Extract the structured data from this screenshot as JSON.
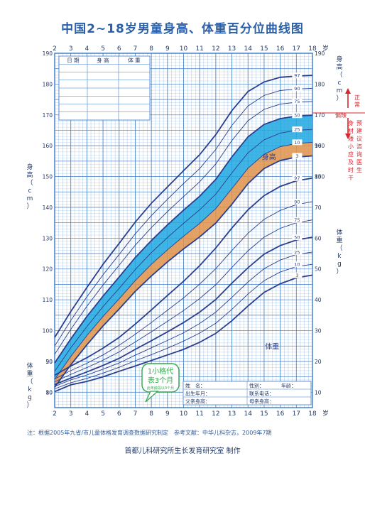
{
  "title": "中国2~18岁男童身高、体重百分位曲线图",
  "footnote": "注：根据2005年九省/市儿童体格发育调查数据研究制定　参考文献：中华儿科杂志，2009年7期",
  "credit": "首都儿科研究所生长发育研究室 制作",
  "age_axis_unit": "岁",
  "height_axis_label": "身高（cm）",
  "weight_axis_label": "体重（kg）",
  "height_curve_label": "身高",
  "weight_curve_label": "体重",
  "record_table": {
    "headers": [
      "日 期",
      "身 高",
      "体 重"
    ]
  },
  "info_box": {
    "name": "姓　名：",
    "sex": "性别：",
    "age": "年龄：",
    "birth": "出生年月：",
    "phone": "联系电话：",
    "father": "父亲身高：",
    "mother": "母亲身高："
  },
  "callout": {
    "main": "1小格代表3个月",
    "line1": "1小格代",
    "line2": "表3个月",
    "small": "此年龄段以3个月"
  },
  "side_notes": {
    "normal": "正常",
    "short": "偏矮",
    "advice": "身材矮小应及时干预建议咨询医生"
  },
  "colors": {
    "grid": "#3a7bc8",
    "curve": "#2a3f8f",
    "band_blue": "#1fa8e0",
    "band_orange": "#e0924a",
    "red": "#d8262c",
    "green": "#2fa84a"
  },
  "chart_data": [
    {
      "type": "line",
      "name": "身高",
      "x": [
        2,
        3,
        4,
        5,
        6,
        7,
        8,
        9,
        10,
        11,
        12,
        13,
        14,
        15,
        16,
        17,
        18
      ],
      "xlabel": "岁",
      "ylabel": "身高（cm）",
      "xlim": [
        2,
        18
      ],
      "ylim": [
        75,
        190
      ],
      "percentiles": [
        "3",
        "10",
        "25",
        "50",
        "75",
        "90",
        "97"
      ],
      "series": [
        {
          "name": "3",
          "values": [
            81.6,
            88.9,
            95.4,
            101.5,
            107.0,
            112.7,
            117.7,
            122.3,
            126.5,
            130.4,
            134.9,
            141.0,
            147.7,
            152.6,
            155.2,
            156.3,
            156.7
          ]
        },
        {
          "name": "10",
          "values": [
            84.2,
            91.6,
            98.4,
            104.6,
            110.3,
            116.2,
            121.5,
            126.2,
            130.6,
            134.8,
            139.6,
            146.1,
            152.7,
            157.2,
            159.7,
            160.7,
            161.1
          ]
        },
        {
          "name": "25",
          "values": [
            86.8,
            94.4,
            101.3,
            107.8,
            113.7,
            119.8,
            125.3,
            130.2,
            134.8,
            139.2,
            144.3,
            151.2,
            157.7,
            161.9,
            164.1,
            165.0,
            165.3
          ]
        },
        {
          "name": "50",
          "values": [
            89.5,
            97.3,
            104.6,
            111.2,
            117.4,
            123.7,
            129.2,
            134.3,
            139.1,
            143.6,
            149.1,
            156.4,
            162.9,
            166.9,
            168.8,
            169.6,
            169.9
          ]
        },
        {
          "name": "75",
          "values": [
            92.3,
            100.4,
            107.9,
            114.8,
            121.2,
            127.7,
            133.4,
            138.6,
            143.5,
            148.3,
            154.1,
            161.7,
            168.1,
            171.8,
            173.5,
            174.1,
            174.4
          ]
        },
        {
          "name": "90",
          "values": [
            95.0,
            103.3,
            111.0,
            118.1,
            124.7,
            131.4,
            137.3,
            142.6,
            147.7,
            152.6,
            158.8,
            166.6,
            172.9,
            176.3,
            177.9,
            178.4,
            178.6
          ]
        },
        {
          "name": "97",
          "values": [
            97.8,
            106.2,
            114.0,
            121.5,
            128.3,
            135.2,
            141.3,
            146.6,
            151.9,
            157.1,
            163.6,
            171.4,
            177.6,
            180.7,
            182.2,
            182.6,
            182.8
          ]
        }
      ]
    },
    {
      "type": "line",
      "name": "体重",
      "x": [
        2,
        3,
        4,
        5,
        6,
        7,
        8,
        9,
        10,
        11,
        12,
        13,
        14,
        15,
        16,
        17,
        18
      ],
      "xlabel": "岁",
      "ylabel": "体重（kg）",
      "xlim": [
        2,
        18
      ],
      "ylim": [
        5,
        100
      ],
      "percentiles": [
        "3",
        "10",
        "25",
        "50",
        "75",
        "90",
        "97"
      ],
      "series": [
        {
          "name": "3",
          "values": [
            10.2,
            12.4,
            13.5,
            15.0,
            16.8,
            18.5,
            20.3,
            22.1,
            23.9,
            26.2,
            29.1,
            33.2,
            38.0,
            42.4,
            45.2,
            47.1,
            48.0
          ]
        },
        {
          "name": "10",
          "values": [
            11.1,
            13.1,
            14.5,
            16.2,
            18.1,
            20.2,
            22.2,
            24.3,
            26.6,
            29.2,
            32.4,
            36.9,
            41.9,
            46.2,
            49.0,
            50.8,
            51.5
          ]
        },
        {
          "name": "25",
          "values": [
            11.9,
            14.0,
            15.6,
            17.5,
            19.5,
            22.0,
            24.4,
            26.8,
            29.3,
            32.3,
            36.0,
            40.8,
            45.8,
            50.1,
            52.9,
            54.7,
            55.5
          ]
        },
        {
          "name": "50",
          "values": [
            12.5,
            14.6,
            16.6,
            18.7,
            21.0,
            23.9,
            26.7,
            29.6,
            32.6,
            36.0,
            40.1,
            45.4,
            50.4,
            54.8,
            57.6,
            59.4,
            60.3
          ]
        },
        {
          "name": "75",
          "values": [
            13.4,
            15.8,
            18.0,
            20.4,
            23.1,
            26.3,
            29.6,
            33.0,
            36.5,
            40.4,
            44.9,
            50.5,
            55.9,
            60.3,
            63.2,
            65.0,
            65.9
          ]
        },
        {
          "name": "90",
          "values": [
            14.3,
            17.0,
            19.4,
            22.1,
            25.2,
            28.8,
            32.6,
            36.6,
            40.6,
            45.1,
            50.1,
            56.0,
            61.6,
            66.1,
            69.0,
            70.9,
            71.8
          ]
        },
        {
          "name": "97",
          "values": [
            15.5,
            18.5,
            21.2,
            24.3,
            27.8,
            32.1,
            36.7,
            41.4,
            46.0,
            51.1,
            56.8,
            63.3,
            69.2,
            73.8,
            76.8,
            78.6,
            79.5
          ]
        }
      ]
    }
  ]
}
